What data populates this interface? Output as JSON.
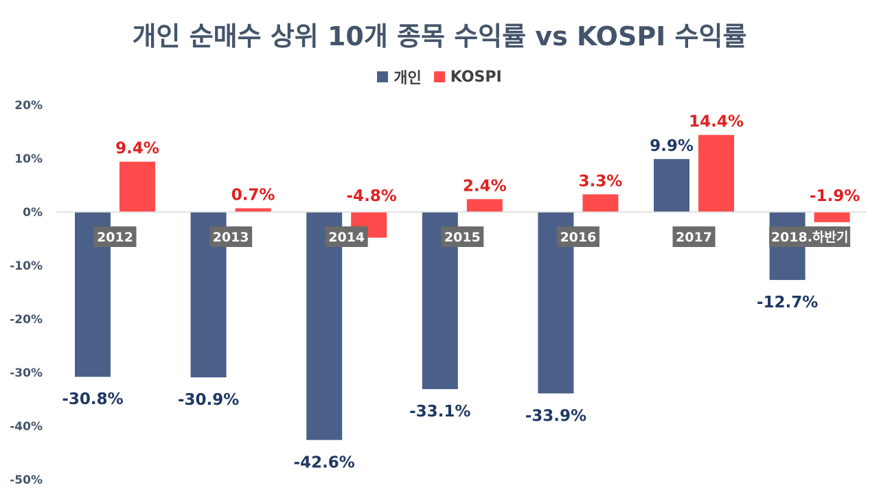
{
  "chart_data": {
    "type": "bar",
    "title": "개인 순매수 상위 10개 종목 수익률 vs KOSPI 수익률",
    "categories": [
      "2012",
      "2013",
      "2014",
      "2015",
      "2016",
      "2017",
      "2018.하반기"
    ],
    "series": [
      {
        "name": "개인",
        "color": "#4a6089",
        "label_color": "#1f3864",
        "values": [
          -30.8,
          -30.9,
          -42.6,
          -33.1,
          -33.9,
          9.9,
          -12.7
        ],
        "labels": [
          "-30.8%",
          "-30.9%",
          "-42.6%",
          "-33.1%",
          "-33.9%",
          "9.9%",
          "-12.7%"
        ]
      },
      {
        "name": "KOSPI",
        "color": "#ff4b4b",
        "label_color": "#e02020",
        "values": [
          9.4,
          0.7,
          -4.8,
          2.4,
          3.3,
          14.4,
          -1.9
        ],
        "labels": [
          "9.4%",
          "0.7%",
          "-4.8%",
          "2.4%",
          "3.3%",
          "14.4%",
          "-1.9%"
        ]
      }
    ],
    "ylim": [
      -50,
      20
    ],
    "yticks": [
      20,
      10,
      0,
      -10,
      -20,
      -30,
      -40,
      -50
    ],
    "ytick_labels": [
      "20%",
      "10%",
      "0%",
      "-10%",
      "-20%",
      "-30%",
      "-40%",
      "-50%"
    ],
    "legend_position": "top-center",
    "grid": false,
    "axis_color": "#d9d9d9",
    "category_label_bg": "#6b6b6b"
  }
}
